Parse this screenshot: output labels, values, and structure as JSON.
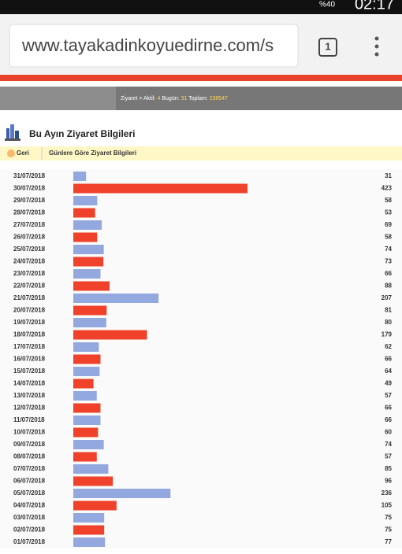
{
  "status_bar": {
    "battery": "%40",
    "time": "02:17"
  },
  "browser": {
    "url": "www.tayakadinkoyuedirne.com/s",
    "tab_count": "1"
  },
  "visit_bar": {
    "label": "Ziyaret > Aktif:",
    "active": "4",
    "today_label": "Bugün:",
    "today": "31",
    "total_label": "Toplam:",
    "total": "238547"
  },
  "section": {
    "title": "Bu Ayın Ziyaret Bilgileri",
    "back": "Geri",
    "subtitle": "Günlere Göre Ziyaret Bilgileri"
  },
  "chart_data": {
    "type": "bar",
    "orientation": "horizontal",
    "colors": [
      "#94a8e0",
      "#f0412a"
    ],
    "categories": [
      "31/07/2018",
      "30/07/2018",
      "29/07/2018",
      "28/07/2018",
      "27/07/2018",
      "26/07/2018",
      "25/07/2018",
      "24/07/2018",
      "23/07/2018",
      "22/07/2018",
      "21/07/2018",
      "20/07/2018",
      "19/07/2018",
      "18/07/2018",
      "17/07/2018",
      "16/07/2018",
      "15/07/2018",
      "14/07/2018",
      "13/07/2018",
      "12/07/2018",
      "11/07/2018",
      "10/07/2018",
      "09/07/2018",
      "08/07/2018",
      "07/07/2018",
      "06/07/2018",
      "05/07/2018",
      "04/07/2018",
      "03/07/2018",
      "02/07/2018",
      "01/07/2018"
    ],
    "values": [
      31,
      423,
      58,
      53,
      69,
      58,
      74,
      73,
      66,
      88,
      207,
      81,
      80,
      179,
      62,
      66,
      64,
      49,
      57,
      66,
      66,
      60,
      74,
      57,
      85,
      96,
      236,
      105,
      75,
      75,
      77
    ]
  }
}
